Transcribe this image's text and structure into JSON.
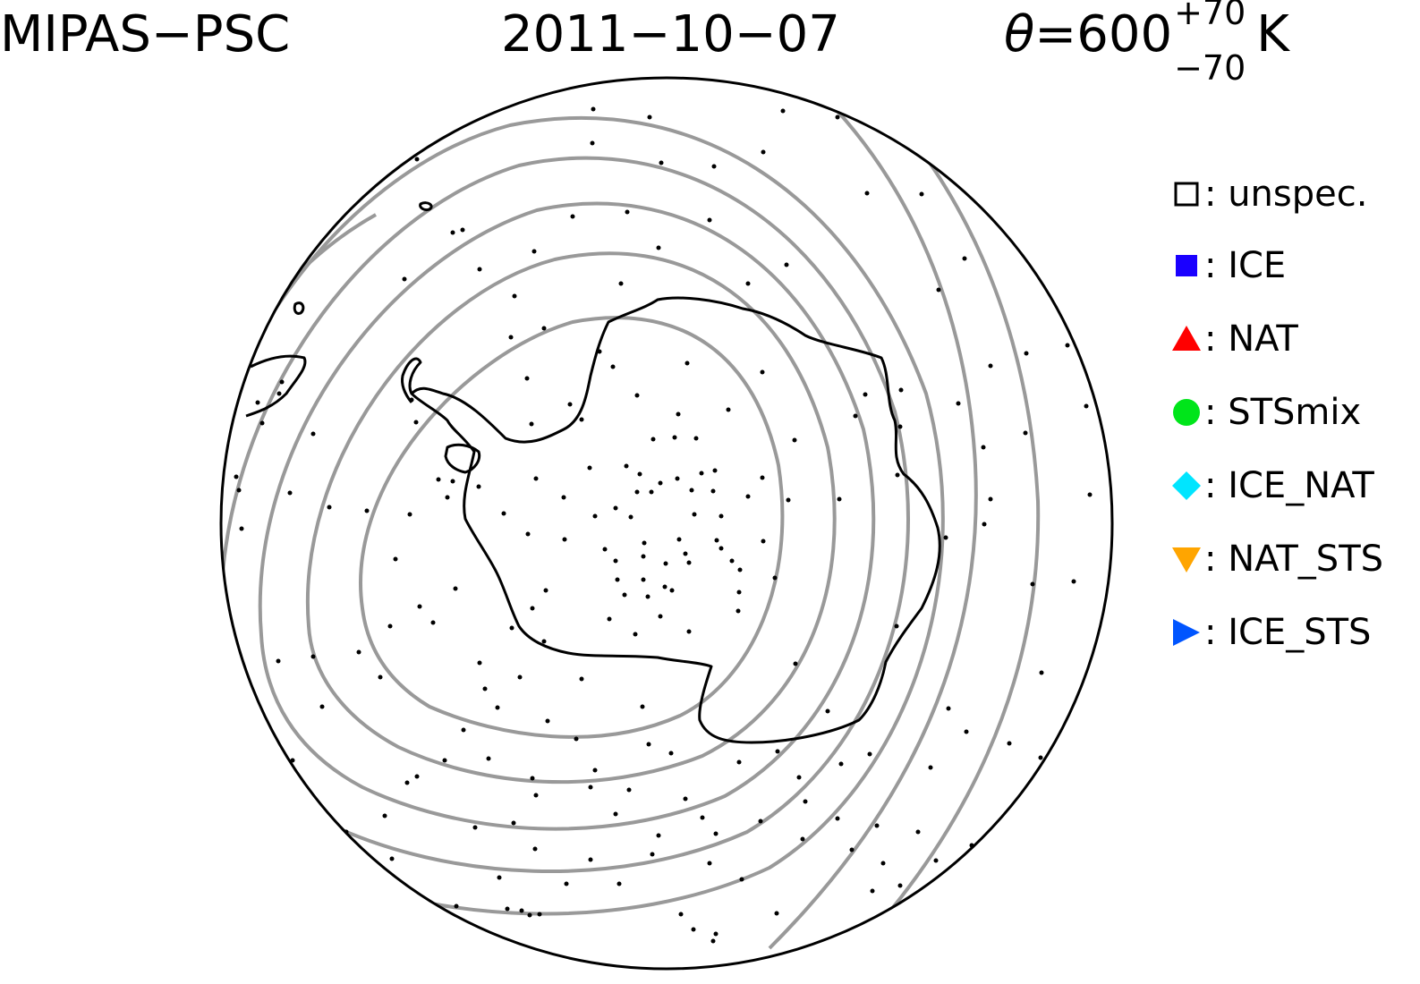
{
  "header": {
    "instrument": "MIPAS−PSC",
    "date": "2011−10−07",
    "theta_symbol": "θ",
    "theta_eq": "=600",
    "theta_plus": "+70",
    "theta_minus": "−70",
    "theta_unit": "K"
  },
  "legend": [
    {
      "symbol": "open-square",
      "label": "unspec.",
      "color": "#000000"
    },
    {
      "symbol": "filled-square",
      "label": "ICE",
      "color": "#1a00ff"
    },
    {
      "symbol": "triangle-up",
      "label": "NAT",
      "color": "#ff0000"
    },
    {
      "symbol": "circle",
      "label": "STSmix",
      "color": "#00e51a"
    },
    {
      "symbol": "diamond",
      "label": "ICE_NAT",
      "color": "#00e5ff"
    },
    {
      "symbol": "triangle-down",
      "label": "NAT_STS",
      "color": "#ffa500"
    },
    {
      "symbol": "triangle-right",
      "label": "ICE_STS",
      "color": "#0055ff"
    }
  ],
  "map": {
    "projection": "polar stereographic, south pole",
    "contour_color": "#999999",
    "coast_color": "#000000",
    "point_color": "#000000"
  }
}
